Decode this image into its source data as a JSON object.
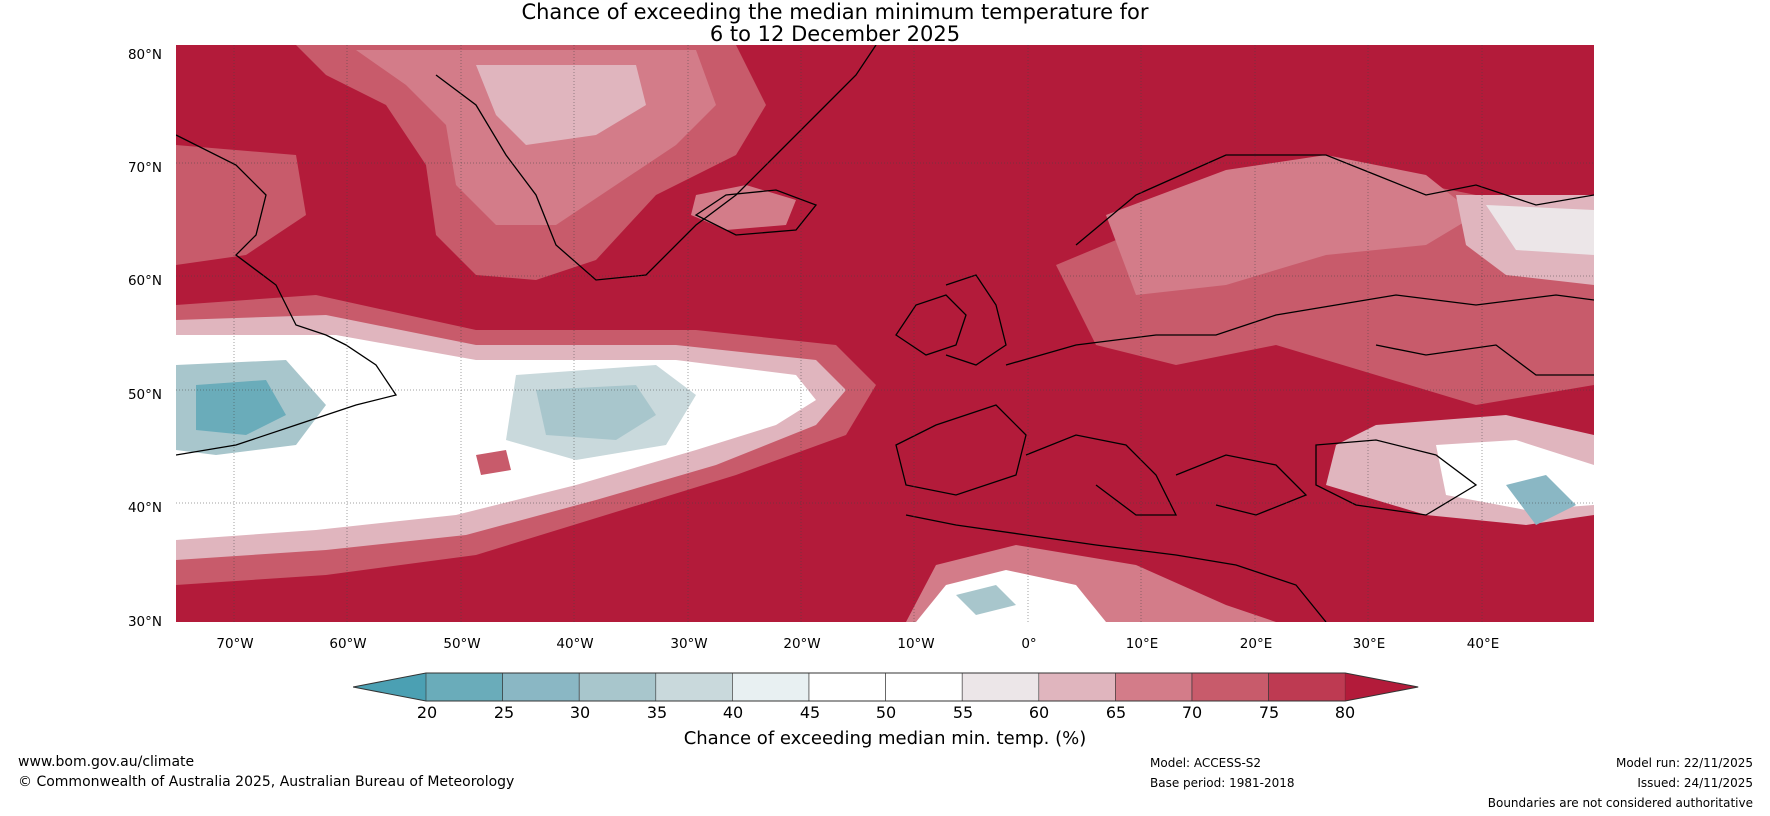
{
  "title": {
    "line1": "Chance of exceeding the median minimum temperature for",
    "line2": "6 to 12 December 2025"
  },
  "map": {
    "lat_labels": [
      "80°N",
      "70°N",
      "60°N",
      "50°N",
      "40°N",
      "30°N"
    ],
    "lon_labels": [
      "70°W",
      "60°W",
      "50°W",
      "40°W",
      "30°W",
      "20°W",
      "10°W",
      "0°",
      "10°E",
      "20°E",
      "30°E",
      "40°E"
    ],
    "lat_range": [
      30,
      81
    ],
    "lon_range": [
      -75,
      50
    ]
  },
  "colorbar": {
    "ticks": [
      "20",
      "25",
      "30",
      "35",
      "40",
      "45",
      "50",
      "55",
      "60",
      "65",
      "70",
      "75",
      "80"
    ],
    "colors": [
      "#4ba0b3",
      "#6aacba",
      "#8ab7c4",
      "#a8c6cc",
      "#c9d9dc",
      "#e8f0f2",
      "#ffffff",
      "#ffffff",
      "#ece6e8",
      "#e0b5be",
      "#d37c89",
      "#c85b6b",
      "#be3a52",
      "#b31b3a"
    ],
    "label": "Chance of exceeding median min. temp. (%)"
  },
  "footer": {
    "website": "www.bom.gov.au/climate",
    "copyright": "© Commonwealth of Australia 2025, Australian Bureau of Meteorology",
    "model": "Model: ACCESS-S2",
    "base_period": "Base period: 1981-2018",
    "model_run": "Model run: 22/11/2025",
    "issued": "Issued: 24/11/2025",
    "disclaimer": "Boundaries are not considered authoritative"
  }
}
